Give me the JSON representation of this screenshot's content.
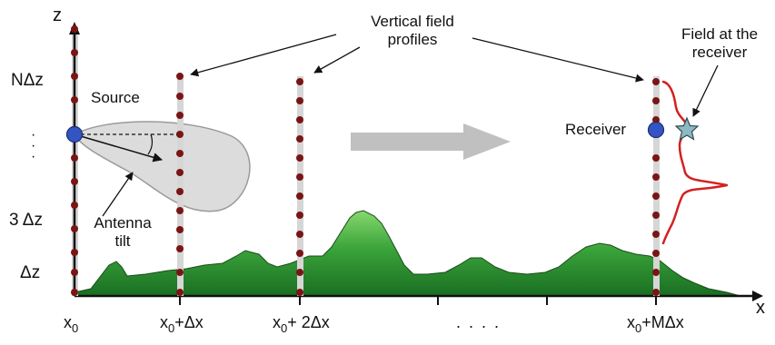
{
  "labels": {
    "z_axis": "z",
    "x_axis": "x",
    "n_dz": "NΔz",
    "three_dz": "3 Δz",
    "dz": "Δz",
    "vdots": "·\n·\n·",
    "source": "Source",
    "receiver": "Receiver",
    "antenna_tilt_line1": "Antenna",
    "antenna_tilt_line2": "tilt",
    "vertical_profiles_line1": "Vertical field",
    "vertical_profiles_line2": "profiles",
    "field_receiver_line1": "Field at the",
    "field_receiver_line2": "receiver",
    "x0_base": "x",
    "x0_sub": "0",
    "x0_plus_dx": "+Δx",
    "x0_plus_2dx": "+ 2Δx",
    "x0_plus_mdx": "+MΔx",
    "dots": ". . . ."
  },
  "colors": {
    "terrain_dark": "#1e7a25",
    "terrain_light": "#7fd46a",
    "profile_dot": "#7a1515",
    "profile_line": "#d9d9d9",
    "source_dot": "#2f4fbf",
    "field_curve": "#d42020",
    "arrow_gray": "#bfbfbf",
    "lobe_fill": "#dcdcdc"
  }
}
